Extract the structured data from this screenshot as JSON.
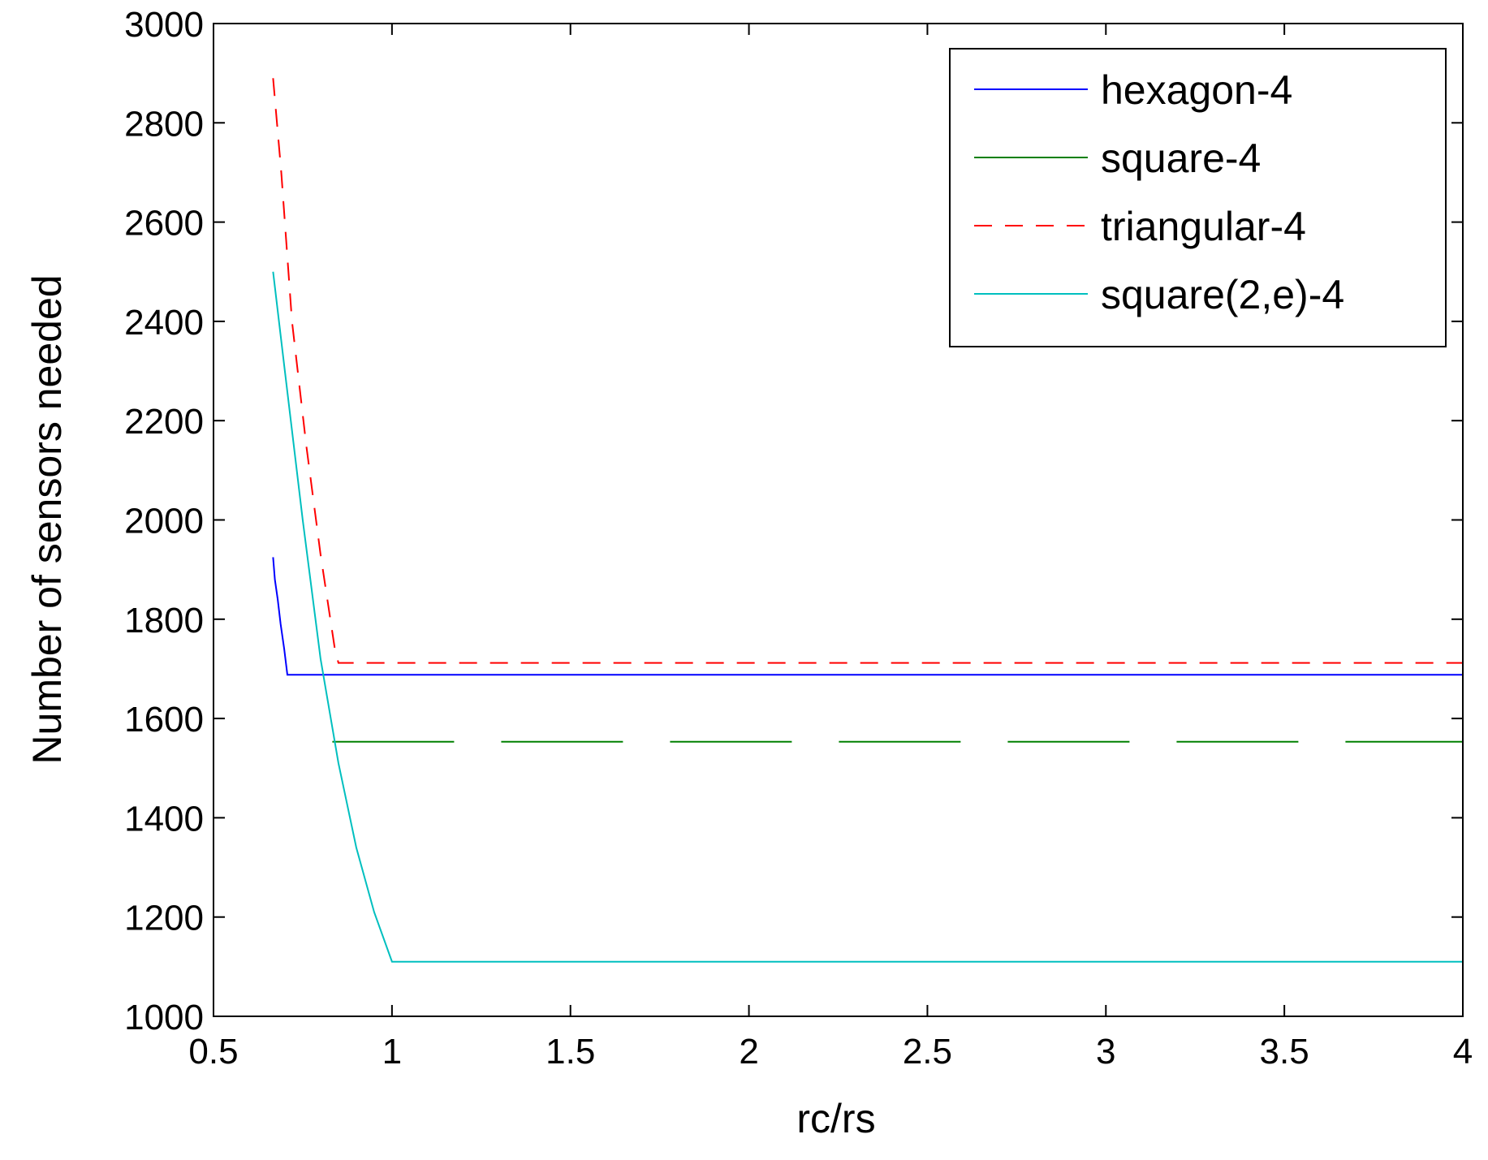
{
  "chart_data": {
    "type": "line",
    "xlabel": "rc/rs",
    "ylabel": "Number of sensors needed",
    "xlim": [
      0.5,
      4
    ],
    "ylim": [
      1000,
      3000
    ],
    "xticks": [
      "0.5",
      "1",
      "1.5",
      "2",
      "2.5",
      "3",
      "3.5",
      "4"
    ],
    "yticks": [
      "1000",
      "1200",
      "1400",
      "1600",
      "1800",
      "2000",
      "2200",
      "2400",
      "2600",
      "2800",
      "3000"
    ],
    "grid": false,
    "legend_position": "top-right",
    "series": [
      {
        "name": "hexagon-4",
        "color": "#0000ff",
        "dash": "solid",
        "points": [
          [
            0.667,
            1925
          ],
          [
            0.672,
            1880
          ],
          [
            0.68,
            1840
          ],
          [
            0.688,
            1790
          ],
          [
            0.698,
            1740
          ],
          [
            0.707,
            1688
          ],
          [
            4.0,
            1688
          ]
        ]
      },
      {
        "name": "square-4",
        "color": "#008000",
        "dash": "long-dash",
        "points": [
          [
            0.833,
            1553
          ],
          [
            4.0,
            1553
          ]
        ]
      },
      {
        "name": "triangular-4",
        "color": "#ff0000",
        "dash": "dashed",
        "points": [
          [
            0.667,
            2890
          ],
          [
            0.69,
            2700
          ],
          [
            0.72,
            2400
          ],
          [
            0.76,
            2150
          ],
          [
            0.8,
            1930
          ],
          [
            0.84,
            1740
          ],
          [
            0.85,
            1712
          ],
          [
            4.0,
            1712
          ]
        ]
      },
      {
        "name": "square(2,e)-4",
        "color": "#00bfbf",
        "dash": "solid",
        "points": [
          [
            0.667,
            2500
          ],
          [
            0.7,
            2300
          ],
          [
            0.75,
            2000
          ],
          [
            0.8,
            1720
          ],
          [
            0.85,
            1510
          ],
          [
            0.9,
            1340
          ],
          [
            0.95,
            1210
          ],
          [
            1.0,
            1110
          ],
          [
            4.0,
            1110
          ]
        ]
      }
    ]
  }
}
